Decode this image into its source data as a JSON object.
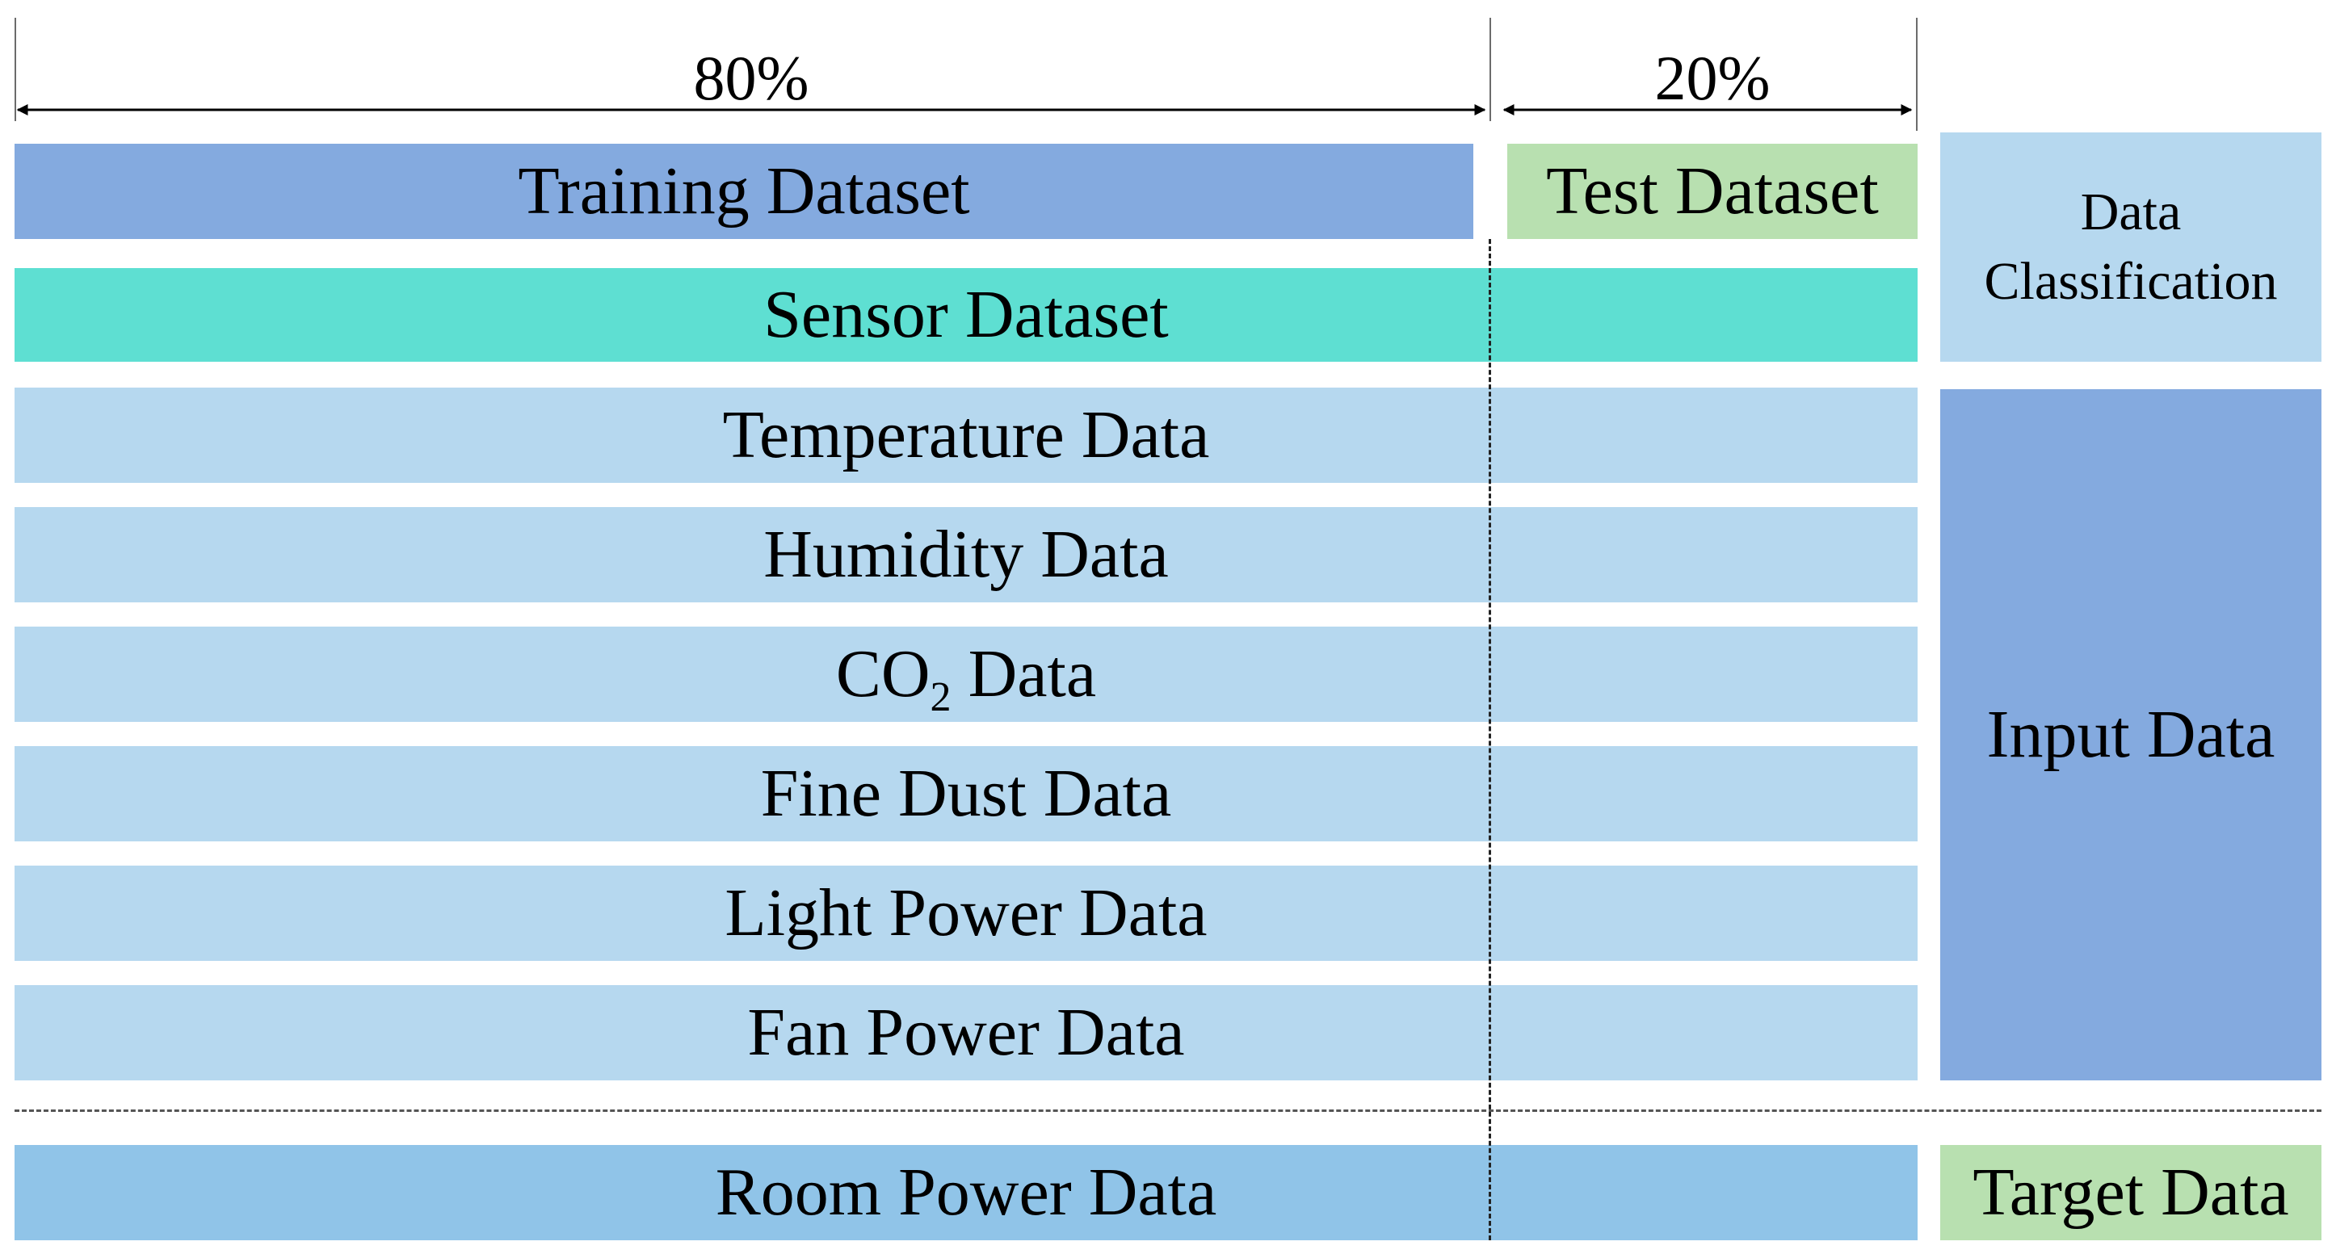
{
  "split": {
    "train_label": "80%",
    "test_label": "20%",
    "train_fraction": 0.8,
    "test_fraction": 0.2
  },
  "bars": {
    "training": "Training Dataset",
    "test": "Test Dataset",
    "sensor": "Sensor Dataset",
    "temperature": "Temperature Data",
    "humidity": "Humidity Data",
    "co2_prefix": "CO",
    "co2_sub": "2",
    "co2_suffix": " Data",
    "fine_dust": "Fine Dust Data",
    "light_power": "Light Power Data",
    "fan_power": "Fan Power Data",
    "room_power": "Room Power Data"
  },
  "legend": {
    "data_classification": "Data Classification",
    "input_data": "Input Data",
    "target_data": "Target Data"
  },
  "colors": {
    "training": "#84aadf",
    "test": "#b8e0b0",
    "sensor": "#5edfd2",
    "input_rows": "#b6d8ef",
    "room_power": "#90c4e8",
    "data_classification": "#b6d8ef",
    "input_data": "#84aadf",
    "target_data": "#b8e0b0"
  }
}
